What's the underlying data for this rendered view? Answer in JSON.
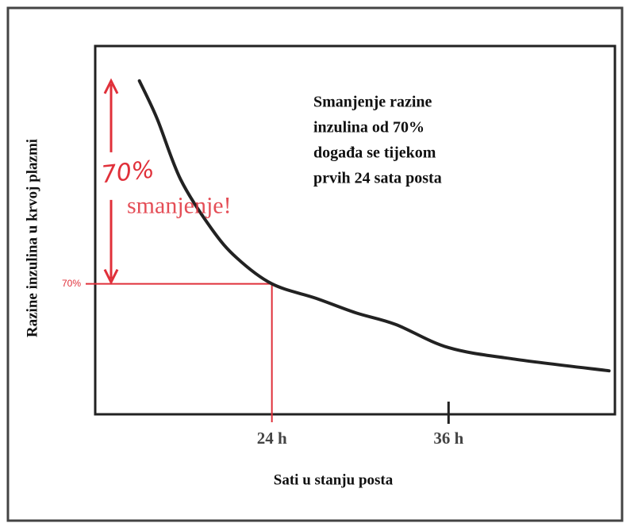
{
  "chart_data": {
    "type": "line",
    "x_label": "Sati u stanju posta",
    "y_label": "Razine inzulina u krvoj plazmi",
    "annotation_lines": [
      "Smanjenje razine",
      "inzulina od 70%",
      "događa se tijekom",
      "prvih 24 sata posta"
    ],
    "arrow_label": "70%",
    "arrow_text": "smanjenje!",
    "x": [
      15,
      16.2,
      17.8,
      19.9,
      21.6,
      24,
      27,
      29.7,
      32.4,
      36,
      40.5,
      46.9
    ],
    "values": [
      0,
      13,
      34,
      51,
      61,
      70,
      75,
      80,
      84,
      92,
      96,
      100
    ],
    "color": "#222222",
    "highlight_color": "#e0303a",
    "xlim": [
      12,
      47.3
    ],
    "xticks": [
      {
        "value": 24,
        "label": "24 h"
      },
      {
        "value": 36,
        "label": "36 h"
      }
    ],
    "ylim": [
      -12,
      115
    ],
    "y_inverted": true,
    "yticks": [
      {
        "value": 70,
        "label": "70%"
      }
    ]
  }
}
